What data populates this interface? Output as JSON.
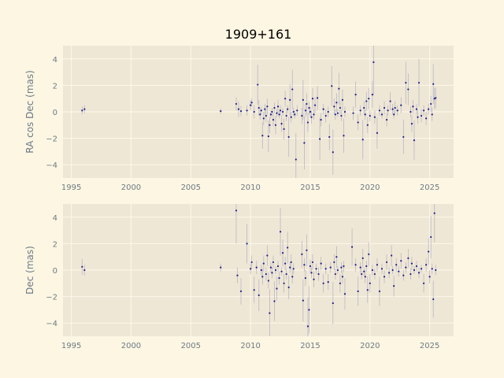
{
  "title": "1909+161",
  "colors": {
    "figure_background": "#fdf6e3",
    "plot_background": "#efe7d5",
    "grid": "#fdf8ea",
    "text": "#6d7b84",
    "points": "#1f1f8c",
    "errorbars": "#b9b7c6"
  },
  "chart_data": [
    {
      "type": "scatter",
      "ylabel": "RA cos Dec (mas)",
      "xlim": [
        1994.3,
        2027.0
      ],
      "ylim": [
        -5,
        5
      ],
      "xticks": [
        1995,
        2000,
        2005,
        2010,
        2015,
        2020,
        2025
      ],
      "yticks": [
        -4,
        -2,
        0,
        2,
        4
      ],
      "grid": true,
      "points": [
        [
          1995.9,
          0.1,
          0.3
        ],
        [
          1996.1,
          0.2,
          0.3
        ],
        [
          2007.5,
          0.05,
          0.2
        ],
        [
          2008.8,
          0.6,
          0.5
        ],
        [
          2009.0,
          0.2,
          0.6
        ],
        [
          2009.2,
          0.05,
          0.4
        ],
        [
          2009.7,
          0.1,
          0.4
        ],
        [
          2010.0,
          0.5,
          0.4
        ],
        [
          2010.1,
          0.7,
          0.3
        ],
        [
          2010.3,
          0.0,
          0.5
        ],
        [
          2010.6,
          2.05,
          1.5
        ],
        [
          2010.7,
          0.3,
          0.6
        ],
        [
          2010.8,
          -0.2,
          0.4
        ],
        [
          2010.9,
          0.1,
          0.3
        ],
        [
          2011.0,
          -1.8,
          1.0
        ],
        [
          2011.1,
          -0.5,
          0.5
        ],
        [
          2011.2,
          0.2,
          0.4
        ],
        [
          2011.3,
          -0.3,
          0.5
        ],
        [
          2011.4,
          0.4,
          0.6
        ],
        [
          2011.5,
          -1.85,
          1.2
        ],
        [
          2011.6,
          -1.0,
          0.6
        ],
        [
          2011.7,
          -0.2,
          0.3
        ],
        [
          2011.8,
          0.0,
          0.3
        ],
        [
          2011.9,
          -0.6,
          0.5
        ],
        [
          2012.0,
          0.3,
          0.4
        ],
        [
          2012.1,
          -1.0,
          0.7
        ],
        [
          2012.2,
          -0.1,
          0.3
        ],
        [
          2012.3,
          0.4,
          0.5
        ],
        [
          2012.4,
          -0.2,
          0.3
        ],
        [
          2012.5,
          0.1,
          0.4
        ],
        [
          2012.6,
          -0.9,
          0.6
        ],
        [
          2012.7,
          0.0,
          0.3
        ],
        [
          2012.8,
          -1.3,
          0.8
        ],
        [
          2012.9,
          1.0,
          0.6
        ],
        [
          2013.0,
          -0.3,
          0.4
        ],
        [
          2013.1,
          0.2,
          0.3
        ],
        [
          2013.2,
          -1.9,
          1.5
        ],
        [
          2013.3,
          0.9,
          1.2
        ],
        [
          2013.4,
          -0.4,
          0.4
        ],
        [
          2013.5,
          1.7,
          1.5
        ],
        [
          2013.6,
          0.0,
          0.3
        ],
        [
          2013.7,
          -0.2,
          0.3
        ],
        [
          2013.8,
          -3.6,
          2.0
        ],
        [
          2013.9,
          0.1,
          0.4
        ],
        [
          2014.3,
          -0.3,
          0.6
        ],
        [
          2014.4,
          0.9,
          1.5
        ],
        [
          2014.5,
          -2.35,
          2.0
        ],
        [
          2014.6,
          0.1,
          0.5
        ],
        [
          2014.7,
          0.6,
          0.8
        ],
        [
          2014.8,
          -0.8,
          0.7
        ],
        [
          2014.9,
          0.3,
          0.5
        ],
        [
          2015.0,
          0.0,
          0.4
        ],
        [
          2015.1,
          -0.4,
          0.5
        ],
        [
          2015.2,
          1.0,
          0.8
        ],
        [
          2015.3,
          -0.2,
          0.4
        ],
        [
          2015.4,
          0.5,
          0.6
        ],
        [
          2015.6,
          1.05,
          0.9
        ],
        [
          2015.8,
          -2.05,
          1.6
        ],
        [
          2015.9,
          -0.6,
          0.5
        ],
        [
          2016.1,
          0.2,
          0.4
        ],
        [
          2016.3,
          -0.3,
          0.5
        ],
        [
          2016.5,
          0.0,
          0.4
        ],
        [
          2016.6,
          -1.9,
          1.0
        ],
        [
          2016.8,
          1.95,
          1.5
        ],
        [
          2016.9,
          -3.05,
          1.7
        ],
        [
          2017.0,
          0.4,
          0.6
        ],
        [
          2017.1,
          -0.2,
          0.4
        ],
        [
          2017.2,
          0.7,
          0.7
        ],
        [
          2017.3,
          -0.1,
          0.3
        ],
        [
          2017.4,
          1.75,
          1.2
        ],
        [
          2017.5,
          0.3,
          0.5
        ],
        [
          2017.6,
          -0.3,
          0.4
        ],
        [
          2017.7,
          0.9,
          0.8
        ],
        [
          2017.8,
          -1.8,
          1.3
        ],
        [
          2017.9,
          0.0,
          0.4
        ],
        [
          2018.6,
          -0.1,
          0.5
        ],
        [
          2018.8,
          1.3,
          1.0
        ],
        [
          2019.0,
          -0.8,
          0.6
        ],
        [
          2019.2,
          0.1,
          0.4
        ],
        [
          2019.4,
          -2.1,
          1.5
        ],
        [
          2019.5,
          0.3,
          0.5
        ],
        [
          2019.6,
          -0.2,
          0.4
        ],
        [
          2019.7,
          0.8,
          0.7
        ],
        [
          2019.8,
          -1.0,
          0.6
        ],
        [
          2019.9,
          1.0,
          0.8
        ],
        [
          2020.0,
          -0.3,
          0.4
        ],
        [
          2020.2,
          1.3,
          1.0
        ],
        [
          2020.3,
          3.75,
          2.5
        ],
        [
          2020.4,
          -0.4,
          0.5
        ],
        [
          2020.6,
          -1.6,
          1.2
        ],
        [
          2020.8,
          0.1,
          0.4
        ],
        [
          2021.0,
          -0.2,
          0.3
        ],
        [
          2021.2,
          0.3,
          0.5
        ],
        [
          2021.4,
          -0.6,
          0.5
        ],
        [
          2021.5,
          0.1,
          0.4
        ],
        [
          2021.7,
          0.8,
          0.7
        ],
        [
          2021.9,
          0.2,
          0.4
        ],
        [
          2022.0,
          -0.2,
          0.3
        ],
        [
          2022.1,
          0.3,
          0.5
        ],
        [
          2022.3,
          0.1,
          0.4
        ],
        [
          2022.6,
          0.5,
          0.6
        ],
        [
          2022.8,
          -1.9,
          1.3
        ],
        [
          2023.0,
          2.2,
          1.6
        ],
        [
          2023.2,
          1.7,
          1.2
        ],
        [
          2023.4,
          0.0,
          0.4
        ],
        [
          2023.5,
          -0.9,
          0.6
        ],
        [
          2023.6,
          0.4,
          0.5
        ],
        [
          2023.7,
          -2.15,
          1.5
        ],
        [
          2023.9,
          0.2,
          0.4
        ],
        [
          2024.0,
          -0.4,
          0.5
        ],
        [
          2024.1,
          2.2,
          1.8
        ],
        [
          2024.3,
          -0.3,
          0.5
        ],
        [
          2024.5,
          0.1,
          0.4
        ],
        [
          2024.7,
          -0.5,
          0.5
        ],
        [
          2024.9,
          0.2,
          0.4
        ],
        [
          2025.1,
          0.6,
          0.6
        ],
        [
          2025.2,
          -0.2,
          0.5
        ],
        [
          2025.3,
          2.1,
          1.5
        ],
        [
          2025.4,
          1.0,
          0.8
        ],
        [
          2025.5,
          1.05,
          0.8
        ]
      ]
    },
    {
      "type": "scatter",
      "ylabel": "Dec (mas)",
      "xlim": [
        1994.3,
        2027.0
      ],
      "ylim": [
        -5,
        5
      ],
      "xticks": [
        1995,
        2000,
        2005,
        2010,
        2015,
        2020,
        2025
      ],
      "yticks": [
        -4,
        -2,
        0,
        2,
        4
      ],
      "grid": true,
      "points": [
        [
          1995.9,
          0.25,
          0.6
        ],
        [
          1996.1,
          0.0,
          0.4
        ],
        [
          2007.5,
          0.2,
          0.3
        ],
        [
          2008.8,
          4.5,
          2.5
        ],
        [
          2008.9,
          -0.4,
          0.6
        ],
        [
          2009.2,
          -1.6,
          1.0
        ],
        [
          2009.7,
          2.0,
          1.5
        ],
        [
          2010.0,
          0.1,
          0.4
        ],
        [
          2010.1,
          0.6,
          0.5
        ],
        [
          2010.3,
          -1.5,
          1.0
        ],
        [
          2010.5,
          0.2,
          0.5
        ],
        [
          2010.7,
          -1.9,
          1.2
        ],
        [
          2010.9,
          0.0,
          0.4
        ],
        [
          2011.0,
          -0.5,
          0.6
        ],
        [
          2011.1,
          0.5,
          0.6
        ],
        [
          2011.3,
          -0.3,
          0.5
        ],
        [
          2011.4,
          1.1,
          0.8
        ],
        [
          2011.5,
          -0.8,
          0.6
        ],
        [
          2011.6,
          -3.25,
          1.8
        ],
        [
          2011.7,
          0.2,
          0.4
        ],
        [
          2011.8,
          -0.2,
          0.4
        ],
        [
          2011.9,
          0.6,
          0.5
        ],
        [
          2012.0,
          -2.35,
          1.5
        ],
        [
          2012.1,
          0.0,
          0.3
        ],
        [
          2012.2,
          -1.4,
          0.9
        ],
        [
          2012.3,
          0.3,
          0.4
        ],
        [
          2012.4,
          -0.6,
          0.5
        ],
        [
          2012.5,
          2.9,
          1.8
        ],
        [
          2012.6,
          -0.1,
          0.3
        ],
        [
          2012.7,
          1.3,
          1.0
        ],
        [
          2012.8,
          -1.0,
          0.7
        ],
        [
          2012.9,
          0.5,
          0.5
        ],
        [
          2013.0,
          -0.3,
          0.4
        ],
        [
          2013.1,
          1.7,
          1.2
        ],
        [
          2013.2,
          -1.3,
          0.9
        ],
        [
          2013.3,
          0.2,
          0.4
        ],
        [
          2013.4,
          0.6,
          0.6
        ],
        [
          2013.5,
          -0.5,
          0.5
        ],
        [
          2013.6,
          0.1,
          0.4
        ],
        [
          2014.3,
          1.2,
          1.0
        ],
        [
          2014.4,
          -2.3,
          1.6
        ],
        [
          2014.5,
          0.4,
          0.5
        ],
        [
          2014.6,
          -0.6,
          0.6
        ],
        [
          2014.7,
          1.5,
          1.2
        ],
        [
          2014.8,
          -4.25,
          2.2
        ],
        [
          2014.9,
          -3.0,
          1.8
        ],
        [
          2015.0,
          0.3,
          0.5
        ],
        [
          2015.1,
          -0.2,
          0.4
        ],
        [
          2015.2,
          0.6,
          0.6
        ],
        [
          2015.3,
          -0.7,
          0.6
        ],
        [
          2015.5,
          0.1,
          0.4
        ],
        [
          2015.7,
          -0.3,
          0.5
        ],
        [
          2015.9,
          0.5,
          0.5
        ],
        [
          2016.1,
          -1.0,
          0.7
        ],
        [
          2016.3,
          0.1,
          0.4
        ],
        [
          2016.5,
          -0.9,
          0.6
        ],
        [
          2016.7,
          0.2,
          0.4
        ],
        [
          2016.9,
          -2.5,
          1.6
        ],
        [
          2017.0,
          0.6,
          0.6
        ],
        [
          2017.1,
          -0.3,
          0.4
        ],
        [
          2017.2,
          1.0,
          0.8
        ],
        [
          2017.3,
          0.0,
          0.3
        ],
        [
          2017.5,
          -1.0,
          0.7
        ],
        [
          2017.6,
          0.2,
          0.4
        ],
        [
          2017.7,
          -0.5,
          0.5
        ],
        [
          2017.8,
          0.3,
          0.4
        ],
        [
          2017.9,
          -1.8,
          1.2
        ],
        [
          2018.5,
          1.75,
          1.4
        ],
        [
          2018.8,
          0.4,
          0.5
        ],
        [
          2019.0,
          -1.6,
          1.1
        ],
        [
          2019.2,
          0.2,
          0.4
        ],
        [
          2019.3,
          -0.3,
          0.4
        ],
        [
          2019.4,
          0.9,
          0.7
        ],
        [
          2019.5,
          -0.1,
          0.3
        ],
        [
          2019.6,
          -0.5,
          0.5
        ],
        [
          2019.7,
          0.3,
          0.4
        ],
        [
          2019.8,
          -1.5,
          1.0
        ],
        [
          2019.9,
          1.2,
          0.9
        ],
        [
          2020.0,
          -1.0,
          0.7
        ],
        [
          2020.2,
          0.0,
          0.4
        ],
        [
          2020.4,
          -0.3,
          0.4
        ],
        [
          2020.6,
          0.4,
          0.5
        ],
        [
          2020.8,
          -1.6,
          1.1
        ],
        [
          2021.0,
          0.1,
          0.4
        ],
        [
          2021.2,
          -0.5,
          0.5
        ],
        [
          2021.4,
          0.6,
          0.6
        ],
        [
          2021.6,
          -0.2,
          0.4
        ],
        [
          2021.8,
          1.1,
          0.8
        ],
        [
          2021.9,
          0.0,
          0.3
        ],
        [
          2022.0,
          -1.2,
          0.8
        ],
        [
          2022.2,
          0.4,
          0.5
        ],
        [
          2022.4,
          -0.1,
          0.4
        ],
        [
          2022.6,
          0.7,
          0.6
        ],
        [
          2022.8,
          -0.4,
          0.4
        ],
        [
          2023.0,
          0.2,
          0.4
        ],
        [
          2023.2,
          0.9,
          0.7
        ],
        [
          2023.4,
          -0.3,
          0.4
        ],
        [
          2023.5,
          0.5,
          0.5
        ],
        [
          2023.7,
          0.0,
          0.3
        ],
        [
          2023.9,
          0.3,
          0.4
        ],
        [
          2024.1,
          -0.2,
          0.4
        ],
        [
          2024.3,
          0.1,
          0.3
        ],
        [
          2024.5,
          -1.0,
          0.7
        ],
        [
          2024.7,
          0.4,
          0.5
        ],
        [
          2024.9,
          1.4,
          1.0
        ],
        [
          2025.0,
          -0.5,
          0.5
        ],
        [
          2025.1,
          2.5,
          1.6
        ],
        [
          2025.2,
          0.1,
          0.4
        ],
        [
          2025.3,
          -2.2,
          1.4
        ],
        [
          2025.4,
          4.3,
          2.2
        ],
        [
          2025.5,
          0.0,
          0.4
        ]
      ]
    }
  ]
}
